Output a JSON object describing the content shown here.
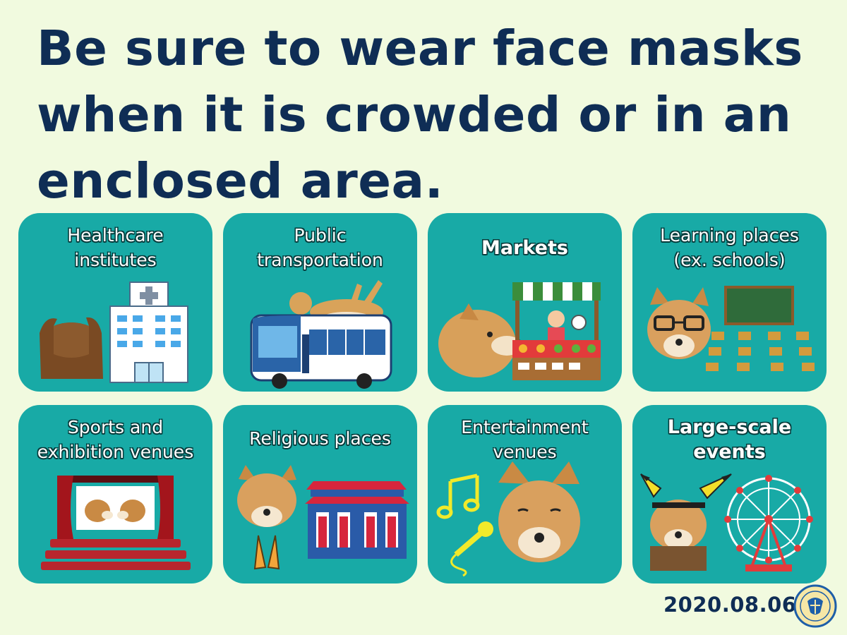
{
  "title": "Be sure to wear face masks when it is crowded or in an enclosed area.",
  "cards": [
    {
      "label": "Healthcare\ninstitutes",
      "icon": "hospital-icon"
    },
    {
      "label": "Public\ntransportation",
      "icon": "bus-icon"
    },
    {
      "label": "Markets",
      "icon": "market-stall-icon"
    },
    {
      "label": "Learning places\n(ex. schools)",
      "icon": "classroom-icon"
    },
    {
      "label": "Sports and\nexhibition venues",
      "icon": "theater-icon"
    },
    {
      "label": "Religious places",
      "icon": "temple-icon"
    },
    {
      "label": "Entertainment\nvenues",
      "icon": "music-icon"
    },
    {
      "label": "Large-scale\nevents",
      "icon": "ferris-wheel-icon"
    }
  ],
  "date": "2020.08.06",
  "colors": {
    "background": "#f1fadf",
    "title": "#0f2d55",
    "card": "#18aaa6"
  }
}
